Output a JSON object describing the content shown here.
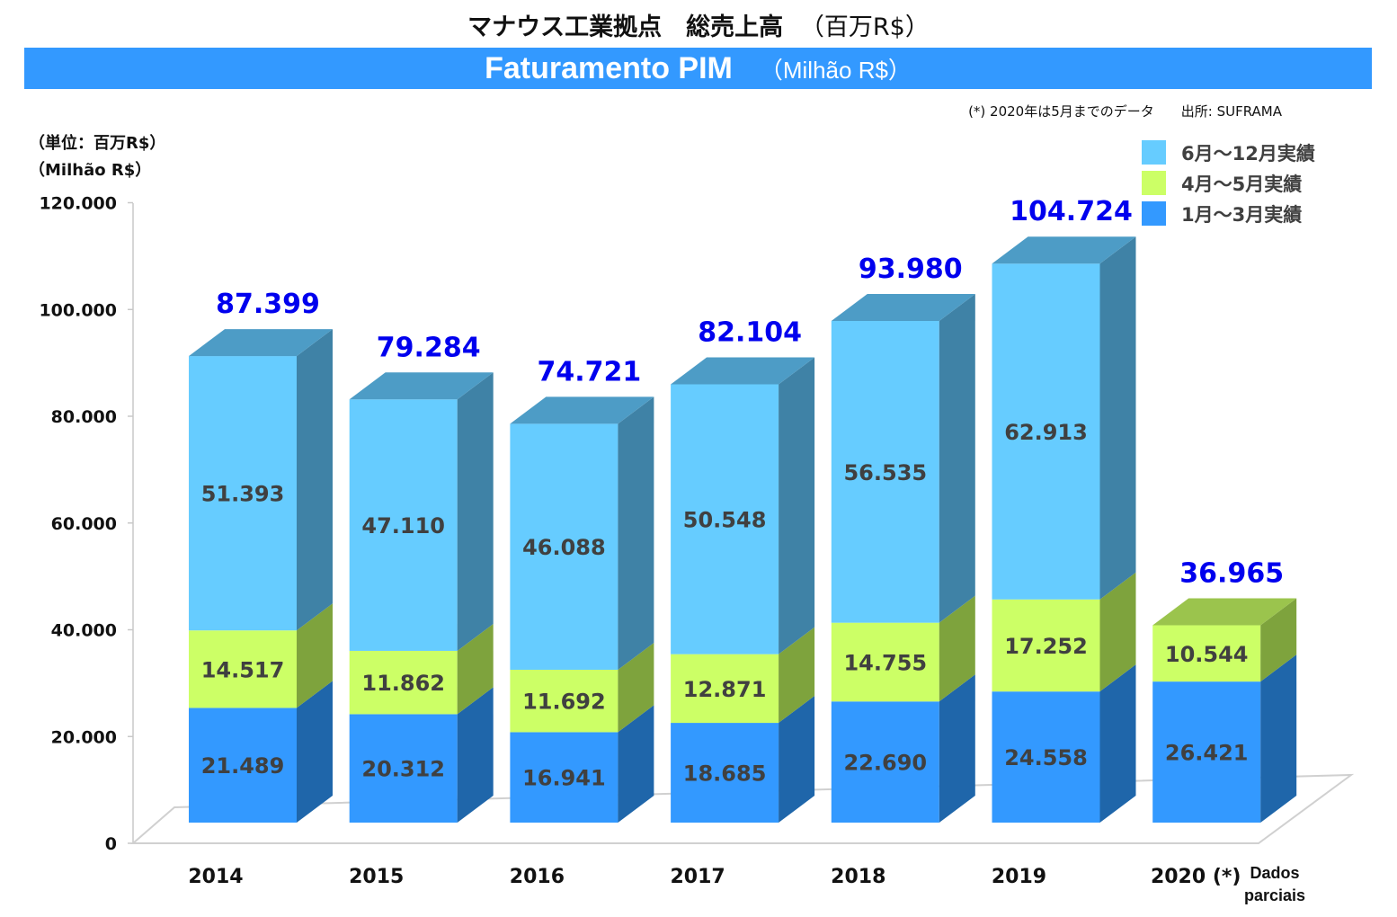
{
  "title_jp": "マナウス工業拠点　総売上高",
  "title_jp_paren": "（百万R$）",
  "banner_title": "Faturamento PIM",
  "banner_subtitle": "（Milhão R$）",
  "note": "(*) 2020年は5月までのデータ　　出所: SUFRAMA",
  "unit_jp": "（単位：百万R$）",
  "unit_pt": "（Milhão R$）",
  "x_note": "Dados parciais",
  "colors": {
    "jan_mar": "#3399ff",
    "apr_may": "#ccff66",
    "jun_dec": "#66ccff",
    "total_label": "#0000ee"
  },
  "chart_data": {
    "type": "bar",
    "stacked": true,
    "categories": [
      "2014",
      "2015",
      "2016",
      "2017",
      "2018",
      "2019",
      "2020 (*)"
    ],
    "series": [
      {
        "name": "1月～3月実績",
        "values": [
          21.489,
          20.312,
          16.941,
          18.685,
          22.69,
          24.558,
          26.421
        ],
        "labels": [
          "21.489",
          "20.312",
          "16.941",
          "18.685",
          "22.690",
          "24.558",
          "26.421"
        ]
      },
      {
        "name": "4月～5月実績",
        "values": [
          14.517,
          11.862,
          11.692,
          12.871,
          14.755,
          17.252,
          10.544
        ],
        "labels": [
          "14.517",
          "11.862",
          "11.692",
          "12.871",
          "14.755",
          "17.252",
          "10.544"
        ]
      },
      {
        "name": "6月～12月実績",
        "values": [
          51.393,
          47.11,
          46.088,
          50.548,
          56.535,
          62.913,
          null
        ],
        "labels": [
          "51.393",
          "47.110",
          "46.088",
          "50.548",
          "56.535",
          "62.913",
          ""
        ]
      }
    ],
    "totals": [
      87.399,
      79.284,
      74.721,
      82.104,
      93.98,
      104.724,
      36.965
    ],
    "total_labels": [
      "87.399",
      "79.284",
      "74.721",
      "82.104",
      "93.980",
      "104.724",
      "36.965"
    ],
    "ylim": [
      0,
      120000
    ],
    "yticks": [
      "0",
      "20.000",
      "40.000",
      "60.000",
      "80.000",
      "100.000",
      "120.000"
    ],
    "legend_position": "top-right",
    "legend": [
      "6月～12月実績",
      "4月～5月実績",
      "1月～3月実績"
    ]
  }
}
